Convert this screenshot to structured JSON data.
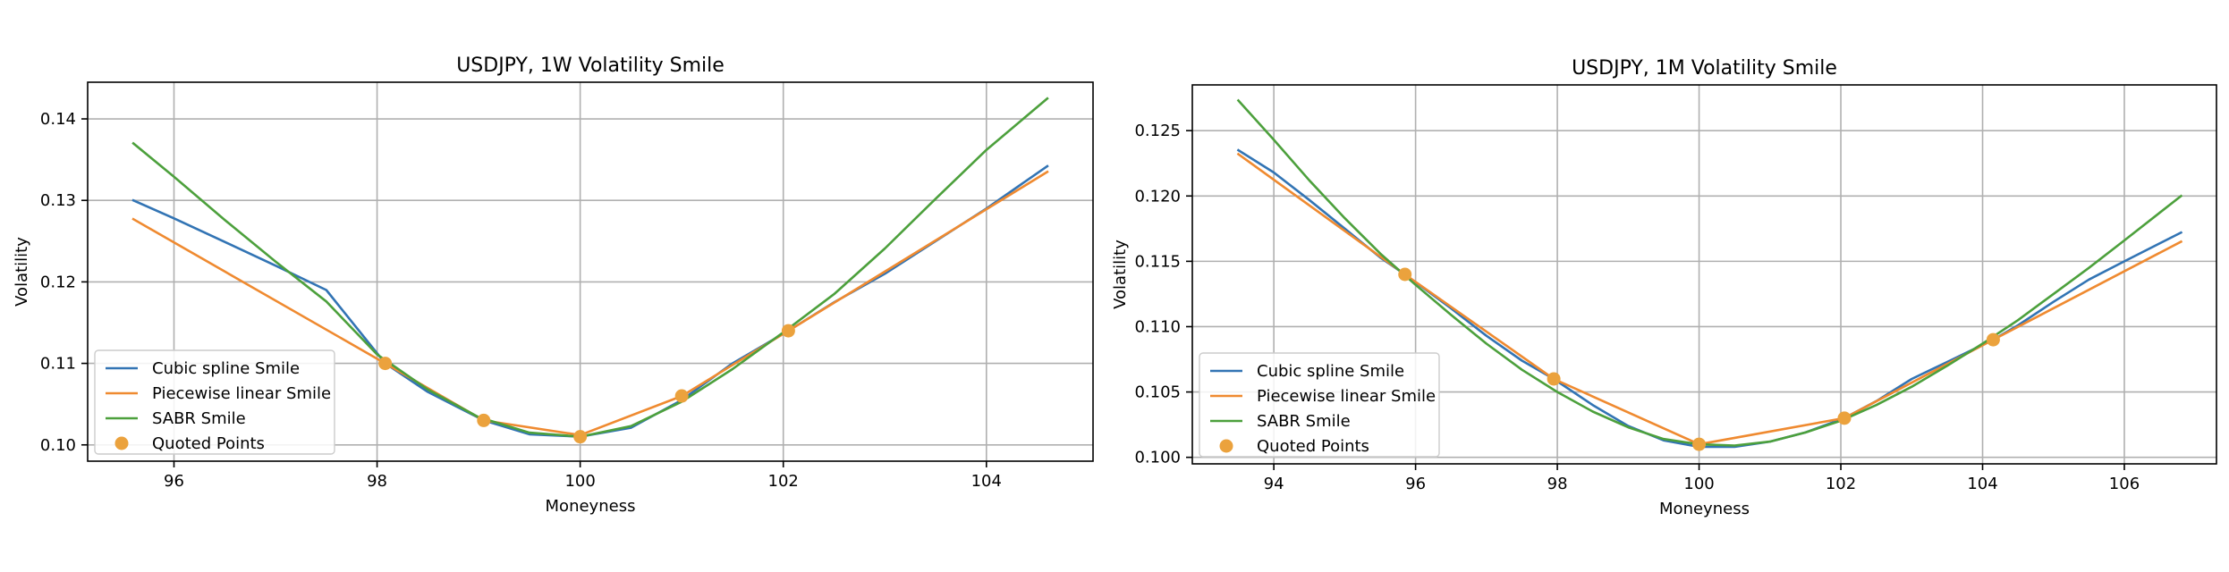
{
  "colors": {
    "cubic": "#3274b4",
    "linear": "#ef8a30",
    "sabr": "#4ca03c",
    "quoted": "#eba23d",
    "grid": "#b0b0b0"
  },
  "chart_data": [
    {
      "type": "line",
      "title": "USDJPY, 1W Volatility Smile",
      "xlabel": "Moneyness",
      "ylabel": "Volatility",
      "xlim": [
        95.15,
        105.05
      ],
      "ylim": [
        0.098,
        0.1445
      ],
      "xticks": [
        96,
        98,
        100,
        102,
        104
      ],
      "yticks": [
        0.1,
        0.11,
        0.12,
        0.13,
        0.14
      ],
      "ytick_labels": [
        "0.10",
        "0.11",
        "0.12",
        "0.13",
        "0.14"
      ],
      "grid": true,
      "legend_position": "lower-left",
      "series": [
        {
          "name": "Cubic spline Smile",
          "key": "cubic",
          "x": [
            95.6,
            96.0,
            96.5,
            97.0,
            97.5,
            98.08,
            98.5,
            99.05,
            99.5,
            100.0,
            100.5,
            101.0,
            101.5,
            102.05,
            102.5,
            103.0,
            103.5,
            104.0,
            104.6
          ],
          "values": [
            0.13,
            0.1278,
            0.1249,
            0.122,
            0.119,
            0.11,
            0.1065,
            0.103,
            0.1013,
            0.101,
            0.1021,
            0.1055,
            0.11,
            0.114,
            0.1175,
            0.121,
            0.125,
            0.129,
            0.1342
          ]
        },
        {
          "name": "Piecewise linear Smile",
          "key": "linear",
          "x": [
            95.6,
            98.08,
            99.05,
            100.0,
            101.0,
            102.05,
            104.6
          ],
          "values": [
            0.1277,
            0.11,
            0.103,
            0.1012,
            0.106,
            0.114,
            0.1335
          ]
        },
        {
          "name": "SABR Smile",
          "key": "sabr",
          "x": [
            95.6,
            96.0,
            96.5,
            97.0,
            97.5,
            98.0,
            98.5,
            99.0,
            99.5,
            100.0,
            100.5,
            101.0,
            101.5,
            102.0,
            102.5,
            103.0,
            103.5,
            104.0,
            104.6
          ],
          "values": [
            0.137,
            0.1329,
            0.1276,
            0.1225,
            0.1176,
            0.1111,
            0.1068,
            0.1034,
            0.1015,
            0.101,
            0.1023,
            0.1053,
            0.1093,
            0.1138,
            0.1185,
            0.1241,
            0.1302,
            0.1362,
            0.1425
          ]
        }
      ],
      "quoted_points": {
        "name": "Quoted Points",
        "x": [
          98.08,
          99.05,
          100.0,
          101.0,
          102.05
        ],
        "values": [
          0.11,
          0.103,
          0.101,
          0.106,
          0.114
        ]
      }
    },
    {
      "type": "line",
      "title": "USDJPY, 1M Volatility Smile",
      "xlabel": "Moneyness",
      "ylabel": "Volatility",
      "xlim": [
        92.85,
        107.3
      ],
      "ylim": [
        0.0995,
        0.1285
      ],
      "xticks": [
        94,
        96,
        98,
        100,
        102,
        104,
        106
      ],
      "yticks": [
        0.1,
        0.105,
        0.11,
        0.115,
        0.12,
        0.125
      ],
      "ytick_labels": [
        "0.100",
        "0.105",
        "0.110",
        "0.115",
        "0.120",
        "0.125"
      ],
      "grid": true,
      "legend_position": "lower-left",
      "series": [
        {
          "name": "Cubic spline Smile",
          "key": "cubic",
          "x": [
            93.5,
            94.0,
            94.5,
            95.0,
            95.5,
            95.85,
            96.5,
            97.0,
            97.5,
            97.95,
            98.5,
            99.0,
            99.5,
            100.0,
            100.5,
            101.0,
            101.5,
            102.05,
            102.5,
            103.0,
            103.5,
            104.15,
            104.5,
            105.0,
            105.5,
            106.0,
            106.8
          ],
          "values": [
            0.1235,
            0.1218,
            0.1197,
            0.1175,
            0.1153,
            0.114,
            0.1114,
            0.1093,
            0.1074,
            0.106,
            0.104,
            0.1024,
            0.1013,
            0.1008,
            0.1008,
            0.1012,
            0.1019,
            0.103,
            0.1043,
            0.106,
            0.1073,
            0.109,
            0.1101,
            0.1119,
            0.1136,
            0.115,
            0.1172
          ]
        },
        {
          "name": "Piecewise linear Smile",
          "key": "linear",
          "x": [
            93.5,
            95.85,
            97.95,
            100.0,
            102.05,
            104.15,
            106.8
          ],
          "values": [
            0.1232,
            0.114,
            0.106,
            0.101,
            0.103,
            0.109,
            0.1165
          ]
        },
        {
          "name": "SABR Smile",
          "key": "sabr",
          "x": [
            93.5,
            94.0,
            94.5,
            95.0,
            95.5,
            96.0,
            96.5,
            97.0,
            97.5,
            98.0,
            98.5,
            99.0,
            99.5,
            100.0,
            100.5,
            101.0,
            101.5,
            102.0,
            102.5,
            103.0,
            103.5,
            104.0,
            104.5,
            105.0,
            105.5,
            106.0,
            106.8
          ],
          "values": [
            0.1273,
            0.1243,
            0.1212,
            0.1183,
            0.1156,
            0.1132,
            0.1109,
            0.1087,
            0.1067,
            0.105,
            0.1035,
            0.1023,
            0.1014,
            0.101,
            0.1009,
            0.1012,
            0.1019,
            0.1028,
            0.104,
            0.1054,
            0.107,
            0.1087,
            0.1105,
            0.1125,
            0.1145,
            0.1166,
            0.12
          ]
        }
      ],
      "quoted_points": {
        "name": "Quoted Points",
        "x": [
          95.85,
          97.95,
          100.0,
          102.05,
          104.15
        ],
        "values": [
          0.114,
          0.106,
          0.101,
          0.103,
          0.109
        ]
      }
    }
  ]
}
